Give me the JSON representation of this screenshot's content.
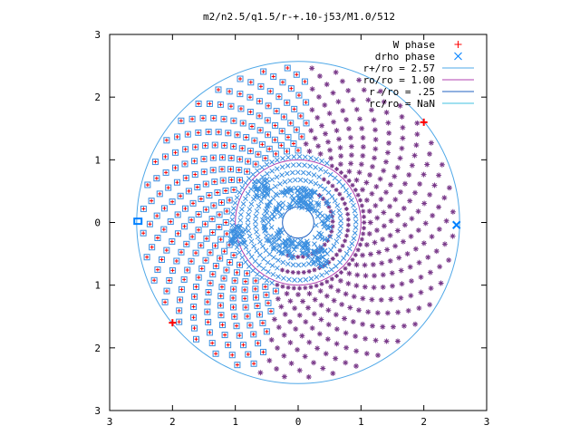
{
  "chart_data": {
    "type": "scatter",
    "title": "m2/n2.5/q1.5/r-+.10-j53/M1.0/512",
    "xlim": [
      -3,
      3
    ],
    "ylim": [
      -3,
      3
    ],
    "x_ticks": [
      -3,
      -2,
      -1,
      0,
      1,
      2,
      3
    ],
    "y_ticks": [
      -3,
      -2,
      -1,
      0,
      1,
      2,
      3
    ],
    "x_tick_labels": [
      "3",
      "2",
      "1",
      "0",
      "1",
      "2",
      "3"
    ],
    "y_tick_labels": [
      "3",
      "2",
      "1",
      "0",
      "1",
      "2",
      "3"
    ],
    "grid": false,
    "legend_position": "top-right",
    "legend": [
      {
        "label": "W phase",
        "color": "#ff0000",
        "marker": "plus"
      },
      {
        "label": "drho phase",
        "color": "#0080ff",
        "marker": "cross"
      },
      {
        "label": "r+/ro = 2.57",
        "color": "#4fa8e8",
        "marker": "line"
      },
      {
        "label": "ro/ro = 1.00",
        "color": "#b040b0",
        "marker": "line"
      },
      {
        "label": "r-/ro = .25",
        "color": "#2060c0",
        "marker": "line"
      },
      {
        "label": "rc/ro = NaN",
        "color": "#40c0e0",
        "marker": "line"
      }
    ],
    "circles": [
      {
        "name": "r+/ro = 2.57",
        "r": 2.57,
        "color": "#4fa8e8"
      },
      {
        "name": "ro/ro = 1.00",
        "r": 1.0,
        "color": "#b040b0"
      },
      {
        "name": "r-/ro = .25",
        "r": 0.25,
        "color": "#2060c0"
      }
    ],
    "highlight_points": [
      {
        "x": 2.0,
        "y": 1.6,
        "color": "#ff0000",
        "marker": "plus"
      },
      {
        "x": -2.0,
        "y": -1.6,
        "color": "#ff0000",
        "marker": "plus"
      },
      {
        "x": -2.55,
        "y": 0.02,
        "color": "#0080ff",
        "marker": "square"
      },
      {
        "x": 2.52,
        "y": -0.04,
        "color": "#0080ff",
        "marker": "cross"
      }
    ]
  }
}
